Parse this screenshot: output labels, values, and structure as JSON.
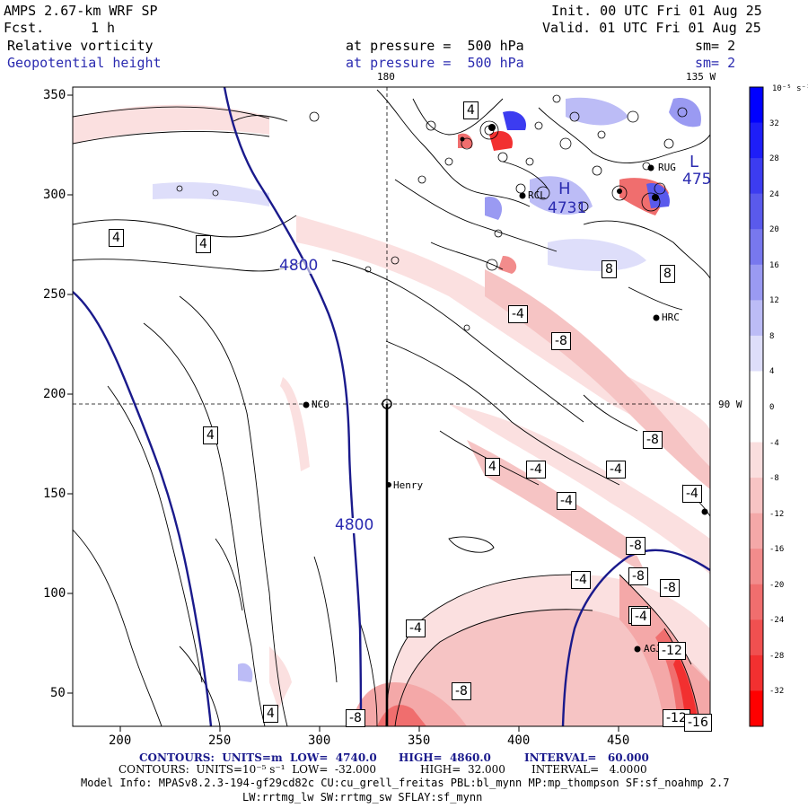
{
  "header": {
    "model": "AMPS 2.67-km WRF SP",
    "fcst_label": "Fcst.",
    "fcst_value": "1 h",
    "init": "Init. 00 UTC Fri 01 Aug 25",
    "valid": "Valid. 01 UTC Fri 01 Aug 25",
    "field1": "Relative vorticity",
    "field2": "Geopotential height",
    "pressure1": "at pressure =  500 hPa",
    "pressure2": "at pressure =  500 hPa",
    "sm1": "sm= 2",
    "sm2": "sm= 2"
  },
  "map": {
    "top_lon_180": "180",
    "top_lon_135": "135 W",
    "right_lon_90": "90 W",
    "x_ticks": [
      "200",
      "250",
      "300",
      "350",
      "400",
      "450"
    ],
    "y_ticks": [
      "350",
      "300",
      "250",
      "200",
      "150",
      "100",
      "50"
    ],
    "stations": [
      "NCO",
      "Henry",
      "RUG",
      "RCL",
      "HRC",
      "AGJ"
    ],
    "height_labels": [
      "4800",
      "4800",
      "4731",
      "475"
    ],
    "height_letters": [
      "H",
      "L"
    ],
    "vort_labels": [
      "4",
      "4",
      "4",
      "4",
      "4",
      "4",
      "-4",
      "-8",
      "-8",
      "-4",
      "-4",
      "-4",
      "-4",
      "-8",
      "-8",
      "-8",
      "-4",
      "-4",
      "-8",
      "-12",
      "-8",
      "-12",
      "-16",
      "8",
      "8",
      "-4",
      "-4"
    ],
    "colors": {
      "height_contour": "#1a1a8c",
      "positive_max": "#0000dd",
      "negative_max": "#ff1010"
    }
  },
  "colorbar": {
    "unit": "10⁻⁵ s⁻¹",
    "labels": [
      "32",
      "28",
      "24",
      "20",
      "16",
      "12",
      "8",
      "4",
      "0",
      "-4",
      "-8",
      "-12",
      "-16",
      "-20",
      "-24",
      "-28",
      "-32"
    ],
    "colors": [
      "#0000ff",
      "#1e1ef8",
      "#3c3cf0",
      "#5a5aec",
      "#7878ee",
      "#9a9af2",
      "#bcbcf6",
      "#dedefa",
      "#ffffff",
      "#ffffff",
      "#fadede",
      "#f7c4c4",
      "#f4a8a8",
      "#f28c8c",
      "#f06e6e",
      "#f05050",
      "#f23030",
      "#ff0000"
    ]
  },
  "footer": {
    "line1_a": "CONTOURS:  UNITS=m  LOW=  4740.0",
    "line1_b": "HIGH=  4860.0",
    "line1_c": "INTERVAL=   60.000",
    "line2_a": "CONTOURS:  UNITS=10⁻⁵ s⁻¹  LOW=  -32.000",
    "line2_b": "HIGH=  32.000",
    "line2_c": "INTERVAL=   4.0000",
    "model_info": "Model Info: MPASv8.2.3-194-gf29cd82c CU:cu_grell_freitas PBL:bl_mynn MP:mp_thompson SF:sf_noahmp 2.7",
    "model_info2": "LW:rrtmg_lw SW:rrtmg_sw SFLAY:sf_mynn"
  }
}
